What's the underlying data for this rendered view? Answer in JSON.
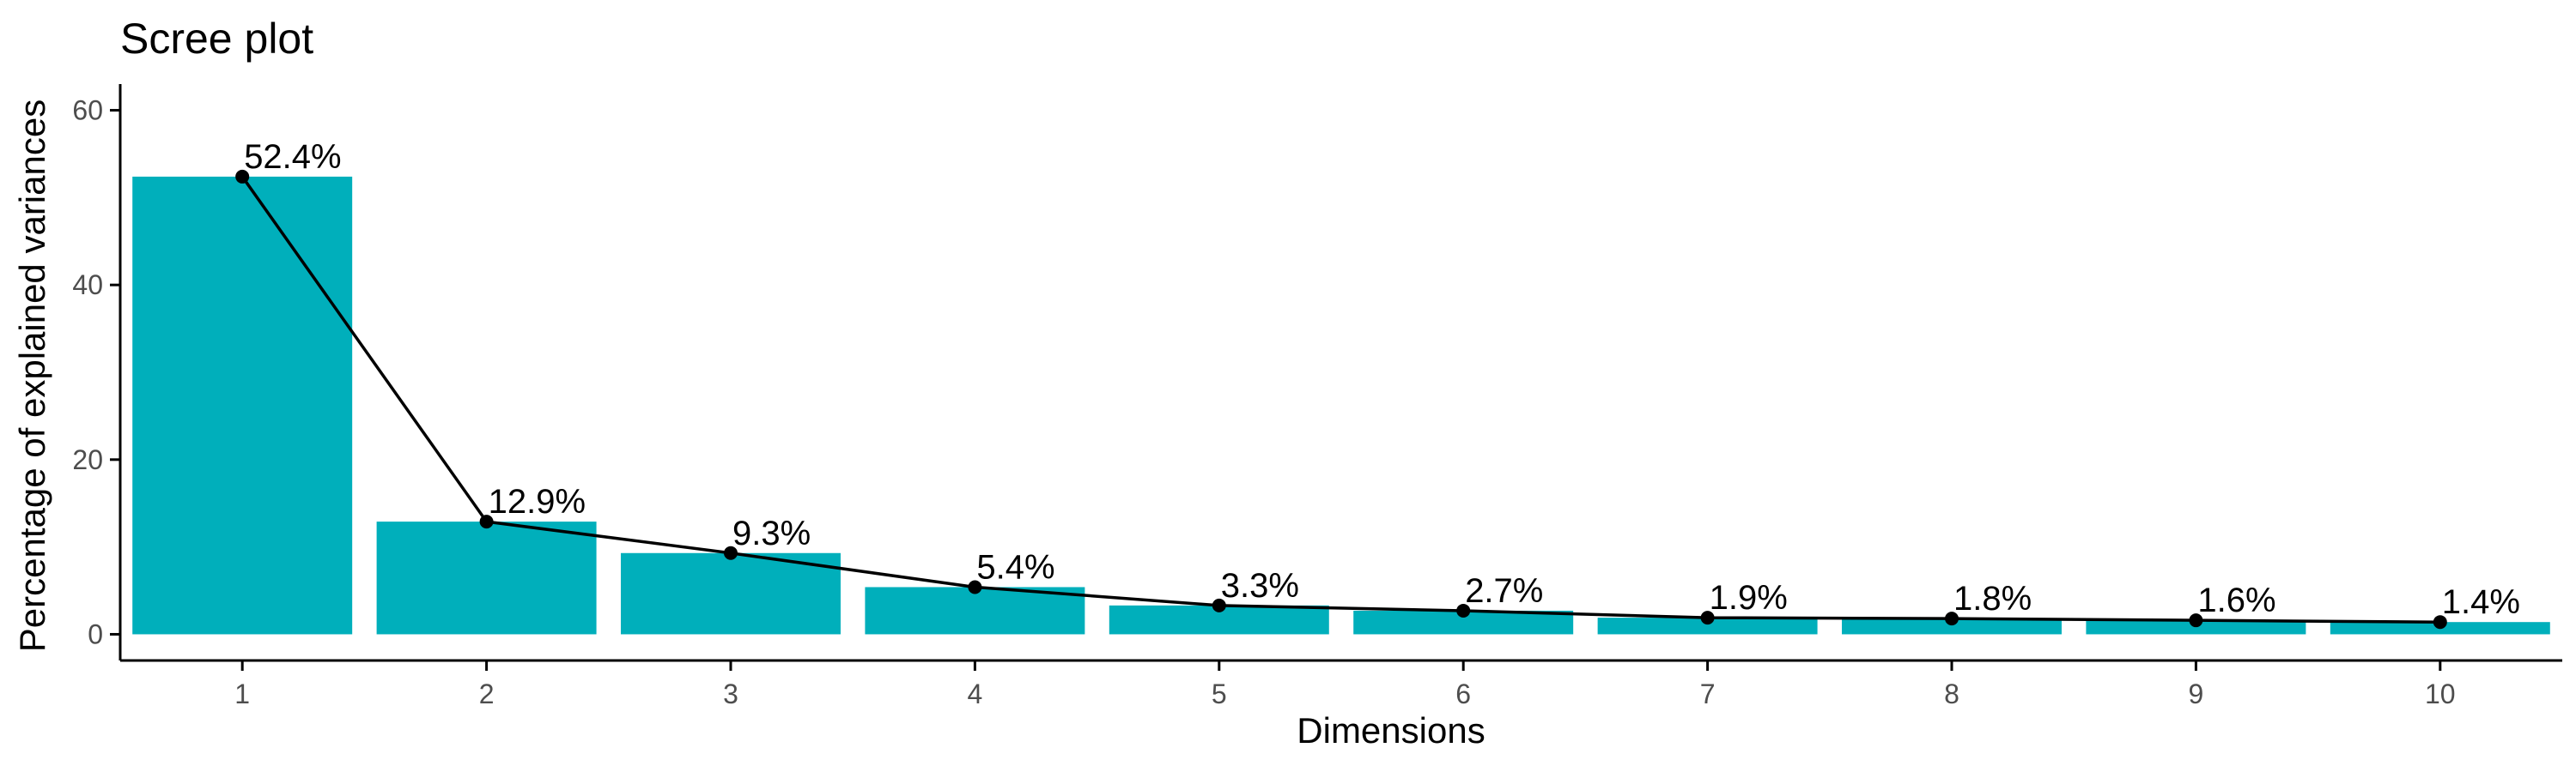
{
  "chart_data": {
    "type": "bar",
    "title": "Scree plot",
    "xlabel": "Dimensions",
    "ylabel": "Percentage of explained variances",
    "categories": [
      "1",
      "2",
      "3",
      "4",
      "5",
      "6",
      "7",
      "8",
      "9",
      "10"
    ],
    "values": [
      52.4,
      12.9,
      9.3,
      5.4,
      3.3,
      2.7,
      1.9,
      1.8,
      1.6,
      1.4
    ],
    "labels": [
      "52.4%",
      "12.9%",
      "9.3%",
      "5.4%",
      "3.3%",
      "2.7%",
      "1.9%",
      "1.8%",
      "1.6%",
      "1.4%"
    ],
    "yticks": [
      0,
      20,
      40,
      60
    ],
    "ylim": [
      -3,
      63
    ],
    "grid": false,
    "overlay": "line with points",
    "colors": {
      "bar": "#00AFBB",
      "line": "#000000",
      "axis": "#000000",
      "tick_text": "#4d4d4d"
    }
  }
}
